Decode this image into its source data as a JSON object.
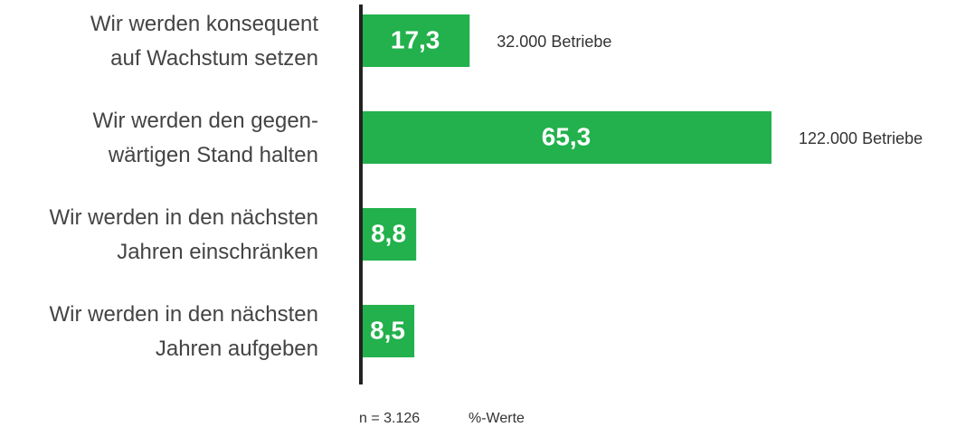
{
  "chart_data": {
    "type": "bar",
    "orientation": "horizontal",
    "categories": [
      [
        "Wir werden konsequent",
        "auf Wachstum setzen"
      ],
      [
        "Wir werden den gegen-",
        "wärtigen Stand halten"
      ],
      [
        "Wir werden in den nächsten",
        "Jahren einschränken"
      ],
      [
        "Wir werden in den nächsten",
        "Jahren aufgeben"
      ]
    ],
    "values": [
      17.3,
      65.3,
      8.8,
      8.5
    ],
    "value_labels": [
      "17,3",
      "65,3",
      "8,8",
      "8,5"
    ],
    "annotations": [
      "32.000 Betriebe",
      "122.000 Betriebe",
      null,
      null
    ],
    "color": "#22b14c",
    "notes": [
      "n = 3.126",
      "%-Werte"
    ]
  }
}
